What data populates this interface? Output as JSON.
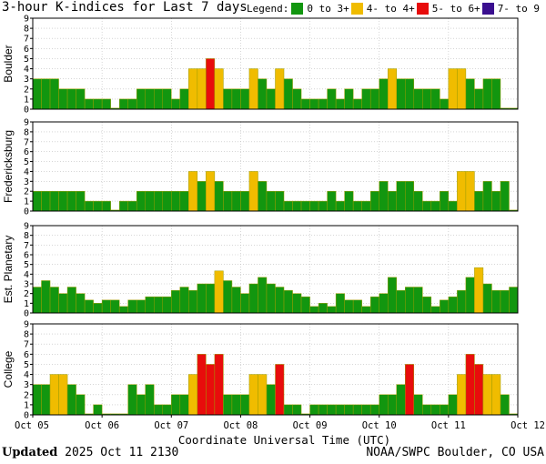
{
  "header": {
    "title": "3-hour K-indices for Last 7 days",
    "legend_label": "Legend:"
  },
  "legend": [
    {
      "label": "0 to 3+",
      "color": "#12960f"
    },
    {
      "label": "4- to 4+",
      "color": "#f0bc00"
    },
    {
      "label": "5- to 6+",
      "color": "#e80c0c"
    },
    {
      "label": "7- to 9",
      "color": "#3a0f8f"
    }
  ],
  "footer": {
    "updated_label": "Updated",
    "updated_time": "2025 Oct 11 2130",
    "source": "NOAA/SWPC Boulder, CO USA"
  },
  "chart_data": {
    "type": "bar",
    "xlabel": "Coordinate Universal Time (UTC)",
    "x_ticks": [
      "Oct 05",
      "Oct 06",
      "Oct 07",
      "Oct 08",
      "Oct 09",
      "Oct 10",
      "Oct 11",
      "Oct 12"
    ],
    "y_ticks": [
      0,
      1,
      2,
      3,
      4,
      5,
      6,
      7,
      8,
      9
    ],
    "ylim": [
      0,
      9
    ],
    "interval_hours": 3,
    "grid": true,
    "color_scale": [
      {
        "range": "0 to 3+",
        "max": 3.67,
        "color": "#12960f"
      },
      {
        "range": "4- to 4+",
        "max": 4.67,
        "color": "#f0bc00"
      },
      {
        "range": "5- to 6+",
        "max": 6.67,
        "color": "#e80c0c"
      },
      {
        "range": "7- to 9",
        "max": 9,
        "color": "#3a0f8f"
      }
    ],
    "panels": [
      {
        "name": "Boulder",
        "values": [
          3,
          3,
          3,
          2,
          2,
          2,
          1,
          1,
          1,
          0.1,
          1,
          1,
          2,
          2,
          2,
          2,
          1,
          2,
          4,
          4,
          5,
          4,
          2,
          2,
          2,
          4,
          3,
          2,
          4,
          3,
          2,
          1,
          1,
          1,
          2,
          1,
          2,
          1,
          2,
          2,
          3,
          4,
          3,
          3,
          2,
          2,
          2,
          1,
          4,
          4,
          3,
          2,
          3,
          3,
          0.1,
          0.1
        ]
      },
      {
        "name": "Fredericksburg",
        "values": [
          2,
          2,
          2,
          2,
          2,
          2,
          1,
          1,
          1,
          0.1,
          1,
          1,
          2,
          2,
          2,
          2,
          2,
          2,
          4,
          3,
          4,
          3,
          2,
          2,
          2,
          4,
          3,
          2,
          2,
          1,
          1,
          1,
          1,
          1,
          2,
          1,
          2,
          1,
          1,
          2,
          3,
          2,
          3,
          3,
          2,
          1,
          1,
          2,
          1,
          4,
          4,
          2,
          3,
          2,
          3,
          0.1
        ]
      },
      {
        "name": "Est. Planetary",
        "values": [
          2.67,
          3.33,
          2.67,
          2,
          2.67,
          2,
          1.33,
          1,
          1.33,
          1.33,
          0.67,
          1.33,
          1.33,
          1.67,
          1.67,
          1.67,
          2.33,
          2.67,
          2.33,
          3,
          3,
          4.33,
          3.33,
          2.67,
          2,
          3,
          3.67,
          3,
          2.67,
          2.33,
          2,
          1.67,
          0.67,
          1,
          0.67,
          2,
          1.33,
          1.33,
          0.67,
          1.67,
          2,
          3.67,
          2.33,
          2.67,
          2.67,
          1.67,
          0.67,
          1.33,
          1.67,
          2.33,
          3.67,
          4.67,
          3,
          2.33,
          2.33,
          2.67
        ]
      },
      {
        "name": "College",
        "values": [
          3,
          3,
          4,
          4,
          3,
          2,
          0.1,
          1,
          0.1,
          0.1,
          0.1,
          3,
          2,
          3,
          1,
          1,
          2,
          2,
          4,
          6,
          5,
          6,
          2,
          2,
          2,
          4,
          4,
          3,
          5,
          1,
          1,
          0.1,
          1,
          1,
          1,
          1,
          1,
          1,
          1,
          1,
          2,
          2,
          3,
          5,
          2,
          1,
          1,
          1,
          2,
          4,
          6,
          5,
          4,
          4,
          2,
          0.1
        ]
      }
    ]
  }
}
